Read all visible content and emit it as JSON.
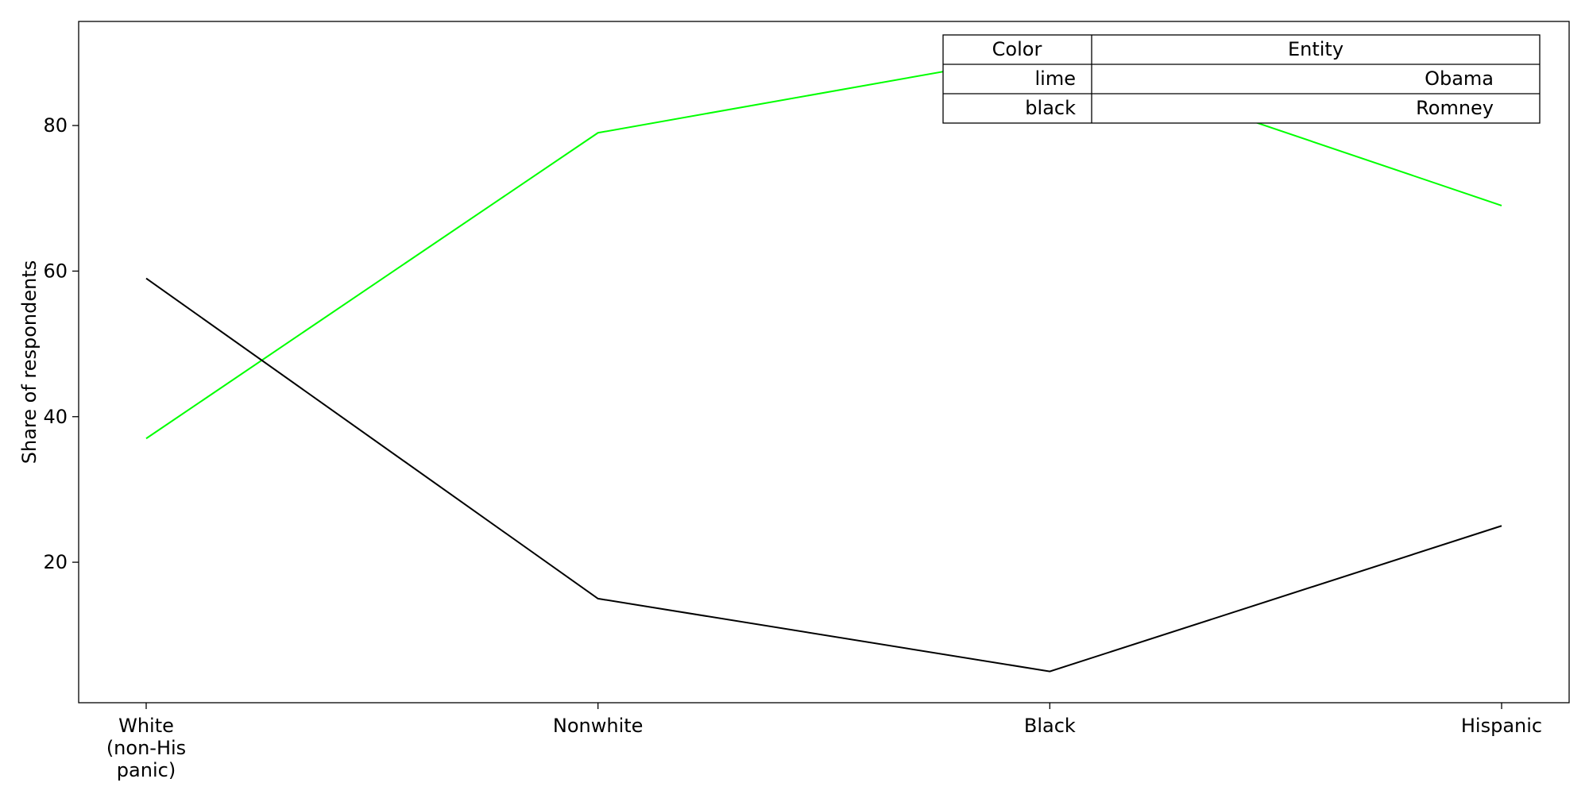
{
  "chart_data": {
    "type": "line",
    "title": "",
    "xlabel": "",
    "ylabel": "Share of respondents",
    "categories": [
      "White\n(non-His\npanic)",
      "Nonwhite",
      "Black",
      "Hispanic"
    ],
    "series": [
      {
        "name": "Obama",
        "color": "#00ff00",
        "values": [
          37,
          79,
          90,
          69
        ]
      },
      {
        "name": "Romney",
        "color": "#000000",
        "values": [
          59,
          15,
          5,
          25
        ]
      }
    ],
    "ylim": [
      0.7,
      94.3
    ],
    "yticks": [
      20,
      40,
      60,
      80
    ],
    "grid": false,
    "legend": {
      "placement": "top-right",
      "header": {
        "color": "Color",
        "entity": "Entity"
      },
      "rows": [
        {
          "color": "lime",
          "entity": "Obama"
        },
        {
          "color": "black",
          "entity": "Romney"
        }
      ]
    }
  }
}
